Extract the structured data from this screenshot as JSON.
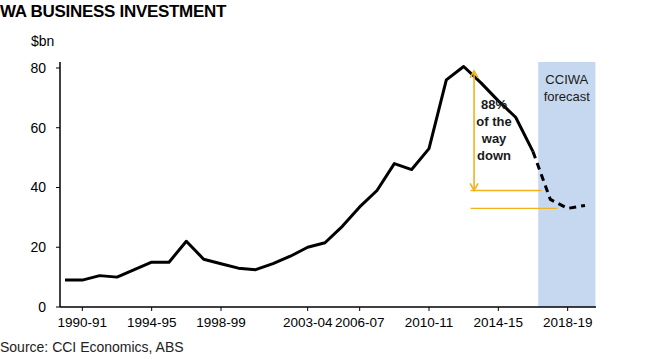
{
  "chart_data": {
    "type": "line",
    "title": "WA BUSINESS INVESTMENT",
    "y_label": "$bn",
    "source": "Source: CCI Economics, ABS",
    "categories": [
      null,
      "1990-91",
      null,
      null,
      null,
      "1994-95",
      null,
      null,
      null,
      "1998-99",
      null,
      null,
      null,
      null,
      "2003-04",
      null,
      null,
      "2006-07",
      null,
      null,
      null,
      "2010-11",
      null,
      null,
      null,
      "2014-15",
      null,
      null,
      null,
      "2018-19",
      null
    ],
    "series": [
      {
        "color": "#000000",
        "line_style": "solid",
        "values": [
          9,
          9,
          10.5,
          10,
          12.5,
          15,
          15,
          22,
          16,
          14.5,
          13,
          12.5,
          14.5,
          17,
          20,
          21.5,
          27,
          33.5,
          39,
          48,
          46,
          53,
          76,
          80.5,
          75,
          69,
          63.5,
          52,
          null,
          null,
          null
        ]
      },
      {
        "color": "#000000",
        "line_style": "dashed",
        "values": [
          null,
          null,
          null,
          null,
          null,
          null,
          null,
          null,
          null,
          null,
          null,
          null,
          null,
          null,
          null,
          null,
          null,
          null,
          null,
          null,
          null,
          null,
          null,
          null,
          null,
          null,
          null,
          52,
          36,
          33,
          34
        ]
      }
    ],
    "ylim": [
      0,
      82
    ],
    "yticks": [
      0,
      20,
      40,
      60,
      80
    ],
    "grid": false,
    "annotations": [
      {
        "text": [
          "88%",
          "of the",
          "way",
          "down"
        ],
        "color": "#f2b21b",
        "from": 79,
        "to": 39,
        "x": 23.6,
        "levels": [
          39,
          33
        ],
        "x_start": 23.4,
        "x_ends": [
          27.5,
          28.4
        ]
      },
      {
        "text": [
          "CCIWA",
          "forecast"
        ],
        "color": "#c6d8ef",
        "x_start": 27.3,
        "x_end": 30.6
      }
    ]
  }
}
